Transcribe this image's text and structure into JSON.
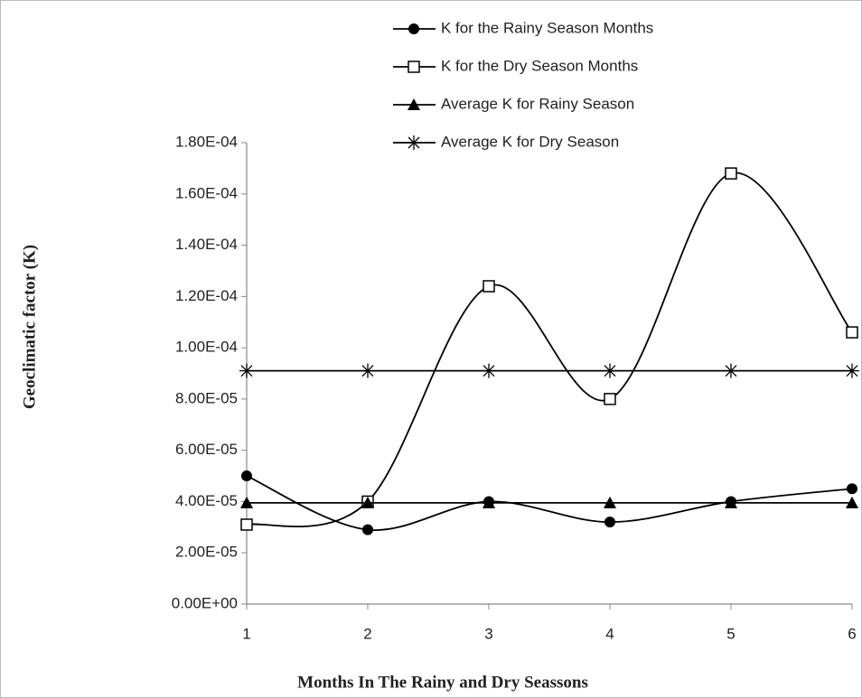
{
  "chart_data": {
    "type": "line",
    "x_label": "Months  In The Rainy and Dry Seassons",
    "y_label": "Geoclimatic factor (K)",
    "x": [
      1,
      2,
      3,
      4,
      5,
      6
    ],
    "xlim": [
      1,
      6
    ],
    "xticks": [
      1,
      2,
      3,
      4,
      5,
      6
    ],
    "ylim": [
      0,
      0.00018
    ],
    "yticks": [
      {
        "value": 0,
        "label": "0.00E+00"
      },
      {
        "value": 2e-05,
        "label": "2.00E-05"
      },
      {
        "value": 4e-05,
        "label": "4.00E-05"
      },
      {
        "value": 6e-05,
        "label": "6.00E-05"
      },
      {
        "value": 8e-05,
        "label": "8.00E-05"
      },
      {
        "value": 0.0001,
        "label": "1.00E-04"
      },
      {
        "value": 0.00012,
        "label": "1.20E-04"
      },
      {
        "value": 0.00014,
        "label": "1.40E-04"
      },
      {
        "value": 0.00016,
        "label": "1.60E-04"
      },
      {
        "value": 0.00018,
        "label": "1.80E-04"
      }
    ],
    "series": [
      {
        "name": "K for the Rainy Season Months",
        "color": "#000000",
        "marker": "circle",
        "smooth": true,
        "values": [
          5e-05,
          2.9e-05,
          4e-05,
          3.2e-05,
          4e-05,
          4.5e-05
        ]
      },
      {
        "name": "K for the Dry Season Months",
        "color": "#000000",
        "marker": "square",
        "smooth": true,
        "values": [
          3.1e-05,
          4e-05,
          0.000124,
          8e-05,
          0.000168,
          0.000106
        ]
      },
      {
        "name": "Average K for Rainy Season",
        "color": "#000000",
        "marker": "triangle",
        "smooth": false,
        "values": [
          3.95e-05,
          3.95e-05,
          3.95e-05,
          3.95e-05,
          3.95e-05,
          3.95e-05
        ]
      },
      {
        "name": "Average K for Dry Season",
        "color": "#000000",
        "marker": "asterisk",
        "smooth": false,
        "values": [
          9.1e-05,
          9.1e-05,
          9.1e-05,
          9.1e-05,
          9.1e-05,
          9.1e-05
        ]
      }
    ]
  }
}
